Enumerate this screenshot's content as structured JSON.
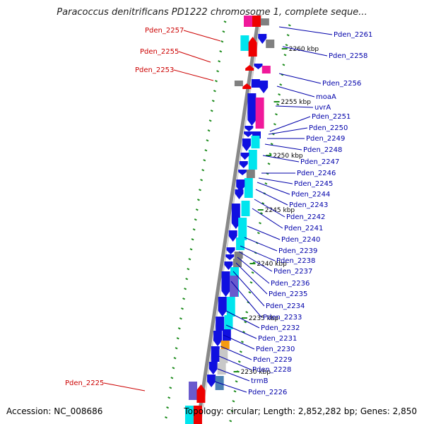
{
  "title": "Paracoccus denitrificans PD1222 chromosome 1, complete seque...",
  "footer": {
    "accession": "Accession: NC_008686",
    "summary": "Topology: circular; Length: 2,852,282 bp; Genes: 2,850"
  },
  "colors": {
    "left_label": "#cc0000",
    "right_label": "#0000aa",
    "blue": "#1010e0",
    "cyan": "#00e5ee",
    "red": "#ee0000",
    "pink": "#f0189a",
    "gray": "#808080",
    "lightgray": "#c8c8c8",
    "orange": "#f59a10",
    "steel": "#4a80b4",
    "slate": "#6a5acd",
    "backbone": "#888888",
    "tick": "#1a8a1a"
  },
  "kbp_labels": [
    "2260 kbp",
    "2255 kbp",
    "2250 kbp",
    "2245 kbp",
    "2240 kbp",
    "2235 kbp",
    "2230 kbp"
  ],
  "left_labels": [
    "Pden_2257",
    "Pden_2255",
    "Pden_2253",
    "Pden_2225"
  ],
  "right_labels": [
    "Pden_2261",
    "Pden_2258",
    "Pden_2256",
    "moaA",
    "uvrA",
    "Pden_2251",
    "Pden_2250",
    "Pden_2249",
    "Pden_2248",
    "Pden_2247",
    "Pden_2246",
    "Pden_2245",
    "Pden_2244",
    "Pden_2243",
    "Pden_2242",
    "Pden_2241",
    "Pden_2240",
    "Pden_2239",
    "Pden_2238",
    "Pden_2237",
    "Pden_2236",
    "Pden_2235",
    "Pden_2234",
    "Pden_2233",
    "Pden_2232",
    "Pden_2231",
    "Pden_2230",
    "Pden_2229",
    "Pden_2228",
    "trmB",
    "Pden_2226"
  ]
}
